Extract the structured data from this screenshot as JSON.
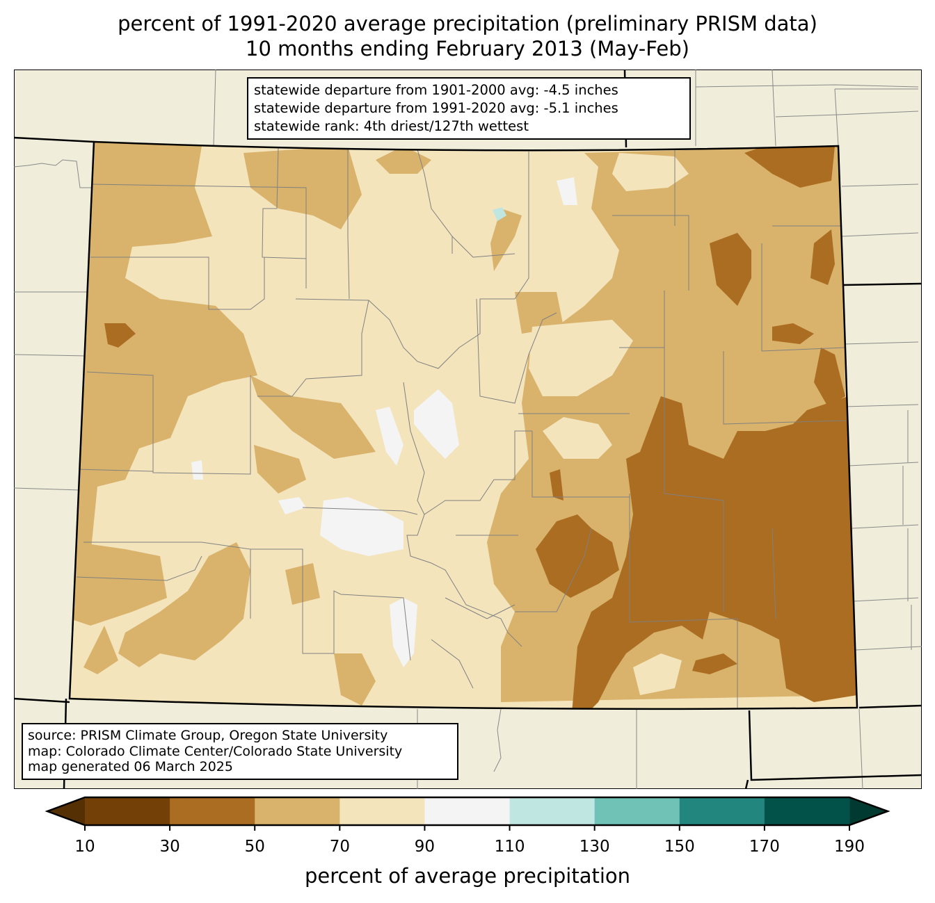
{
  "title": {
    "line1": "percent of 1991-2020 average precipitation (preliminary PRISM data)",
    "line2": "10 months ending February 2013 (May-Feb)"
  },
  "info": {
    "line1": "statewide departure from 1901-2000 avg: -4.5 inches",
    "line2": "statewide departure from 1991-2020 avg: -5.1 inches",
    "line3": "statewide rank: 4th driest/127th wettest"
  },
  "source": {
    "line1": "source: PRISM Climate Group, Oregon State University",
    "line2": "map: Colorado Climate Center/Colorado State University",
    "line3": "map generated 06 March 2025"
  },
  "colorbar": {
    "label": "percent of average precipitation",
    "ticks": [
      "10",
      "30",
      "50",
      "70",
      "90",
      "110",
      "130",
      "150",
      "170",
      "190"
    ],
    "colors": [
      "#734108",
      "#ab6d22",
      "#d9b26b",
      "#f3e4bc",
      "#f3f4f3",
      "#bfe6e1",
      "#71c2b6",
      "#22867e",
      "#03524a"
    ],
    "under_color": "#553005",
    "over_color": "#013a30"
  },
  "colors": {
    "background": "#f0eedb",
    "p10_30": "#734108",
    "p30_50": "#ab6d22",
    "p50_70": "#d9b26b",
    "p70_90": "#f3e4bc",
    "p90_110": "#f3f4f3",
    "p110_130": "#bfe6e1"
  }
}
